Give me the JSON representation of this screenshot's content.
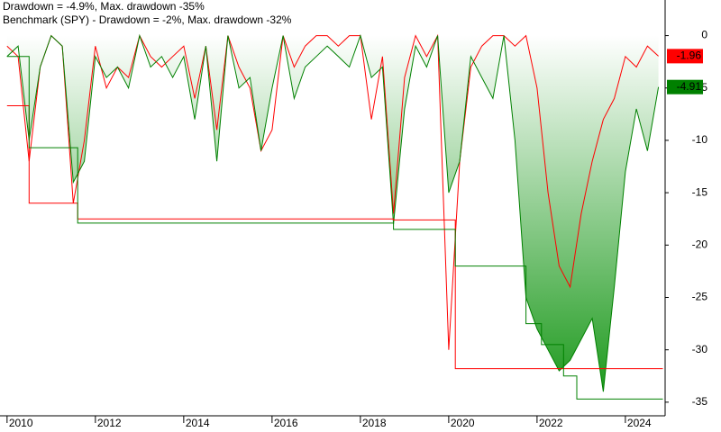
{
  "chart_data": {
    "type": "line",
    "x": [
      2010,
      2010.25,
      2010.5,
      2010.75,
      2011,
      2011.25,
      2011.5,
      2011.75,
      2012,
      2012.25,
      2012.5,
      2012.75,
      2013,
      2013.25,
      2013.5,
      2013.75,
      2014,
      2014.25,
      2014.5,
      2014.75,
      2015,
      2015.25,
      2015.5,
      2015.75,
      2016,
      2016.25,
      2016.5,
      2016.75,
      2017,
      2017.25,
      2017.5,
      2017.75,
      2018,
      2018.25,
      2018.5,
      2018.75,
      2019,
      2019.25,
      2019.5,
      2019.75,
      2020,
      2020.25,
      2020.5,
      2020.75,
      2021,
      2021.25,
      2021.5,
      2021.75,
      2022,
      2022.25,
      2022.5,
      2022.75,
      2023,
      2023.25,
      2023.5,
      2023.75,
      2024,
      2024.25,
      2024.5,
      2024.75
    ],
    "series": [
      {
        "name": "Drawdown = -4.9%, Max. drawdown -35%",
        "color": "#008000",
        "fill": true,
        "values": [
          -2,
          -1,
          -10,
          -3,
          0,
          -1,
          -14,
          -12,
          -2,
          -4,
          -3,
          -5,
          0,
          -3,
          -2,
          -4,
          -2,
          -8,
          -1,
          -12,
          0,
          -5,
          -4,
          -11,
          -5,
          0,
          -6,
          -3,
          -2,
          -1,
          -2,
          -3,
          0,
          -4,
          -3,
          -18,
          -7,
          -1,
          -3,
          0,
          -15,
          -12,
          -2,
          -4,
          -6,
          0,
          -10,
          -25,
          -28,
          -30,
          -32,
          -31,
          -29,
          -27,
          -34,
          -24,
          -13,
          -7,
          -11,
          -4.91
        ]
      },
      {
        "name": "Benchmark (SPY) - Drawdown = -2%, Max. drawdown -32%",
        "color": "#ff0000",
        "values": [
          -1,
          -2,
          -12,
          -3,
          0,
          -1,
          -16,
          -10,
          -1,
          -5,
          -3,
          -4,
          0,
          -2,
          -3,
          -2,
          -1,
          -6,
          -1,
          -9,
          0,
          -3,
          -5,
          -11,
          -9,
          0,
          -3,
          -1,
          0,
          0,
          -1,
          0,
          0,
          -8,
          -2,
          -17,
          -4,
          0,
          -2,
          0,
          -30,
          -12,
          -3,
          -1,
          0,
          0,
          -1,
          0,
          -5,
          -15,
          -22,
          -24,
          -17,
          -12,
          -8,
          -6,
          -2,
          -3,
          -1,
          -1.96
        ]
      },
      {
        "color": "#008000",
        "step": true,
        "x": [
          2010,
          2010.5,
          2011.6,
          2018.75,
          2020.15,
          2021.75,
          2022.1,
          2022.6,
          2022.9,
          2024.85
        ],
        "values": [
          -2,
          -10.7,
          -17.9,
          -18.5,
          -22,
          -27.5,
          -29.5,
          -32.5,
          -34.7,
          -34.7
        ]
      },
      {
        "color": "#ff0000",
        "step": true,
        "x": [
          2010,
          2010.5,
          2011.6,
          2018.75,
          2020.15,
          2024.85
        ],
        "values": [
          -6.7,
          -16,
          -17.5,
          -17.6,
          -31.8,
          -31.8
        ]
      }
    ],
    "xlim": [
      2009.84,
      2024.9
    ],
    "xticks": [
      2010,
      2012,
      2014,
      2016,
      2018,
      2020,
      2022,
      2024
    ],
    "ylim": [
      -36.3,
      3.4
    ],
    "yticks": [
      0,
      -5,
      -10,
      -15,
      -20,
      -25,
      -30,
      -35
    ]
  }
}
